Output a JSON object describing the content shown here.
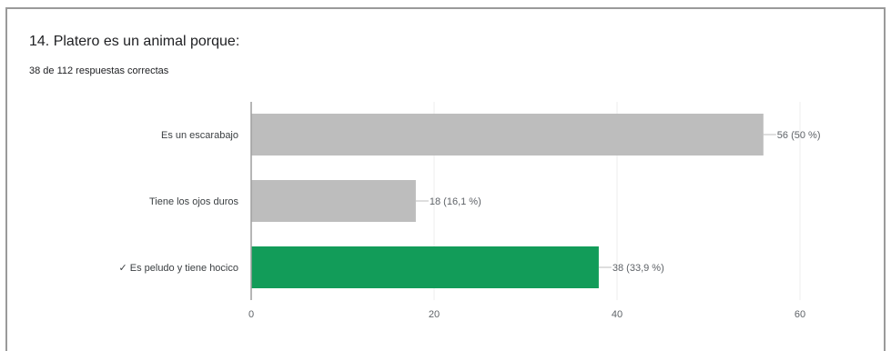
{
  "question": {
    "title": "14. Platero es un animal porque:",
    "summary": "38 de 112 respuestas correctas"
  },
  "colors": {
    "bar_default": "#bdbdbd",
    "bar_correct": "#129c59",
    "axis": "#9e9e9e",
    "grid": "#ececec",
    "leader": "#bdbdbd"
  },
  "chart_data": {
    "type": "bar",
    "orientation": "horizontal",
    "categories": [
      "Es un escarabajo",
      "Tiene los ojos duros",
      "✓ Es peludo y tiene hocico"
    ],
    "values": [
      56,
      18,
      38
    ],
    "data_labels": [
      "56 (50 %)",
      "18 (16,1 %)",
      "38 (33,9 %)"
    ],
    "correct": [
      false,
      false,
      true
    ],
    "x_ticks": [
      0,
      20,
      40,
      60
    ],
    "xlim": [
      0,
      60
    ],
    "grid": true,
    "legend": "none"
  }
}
